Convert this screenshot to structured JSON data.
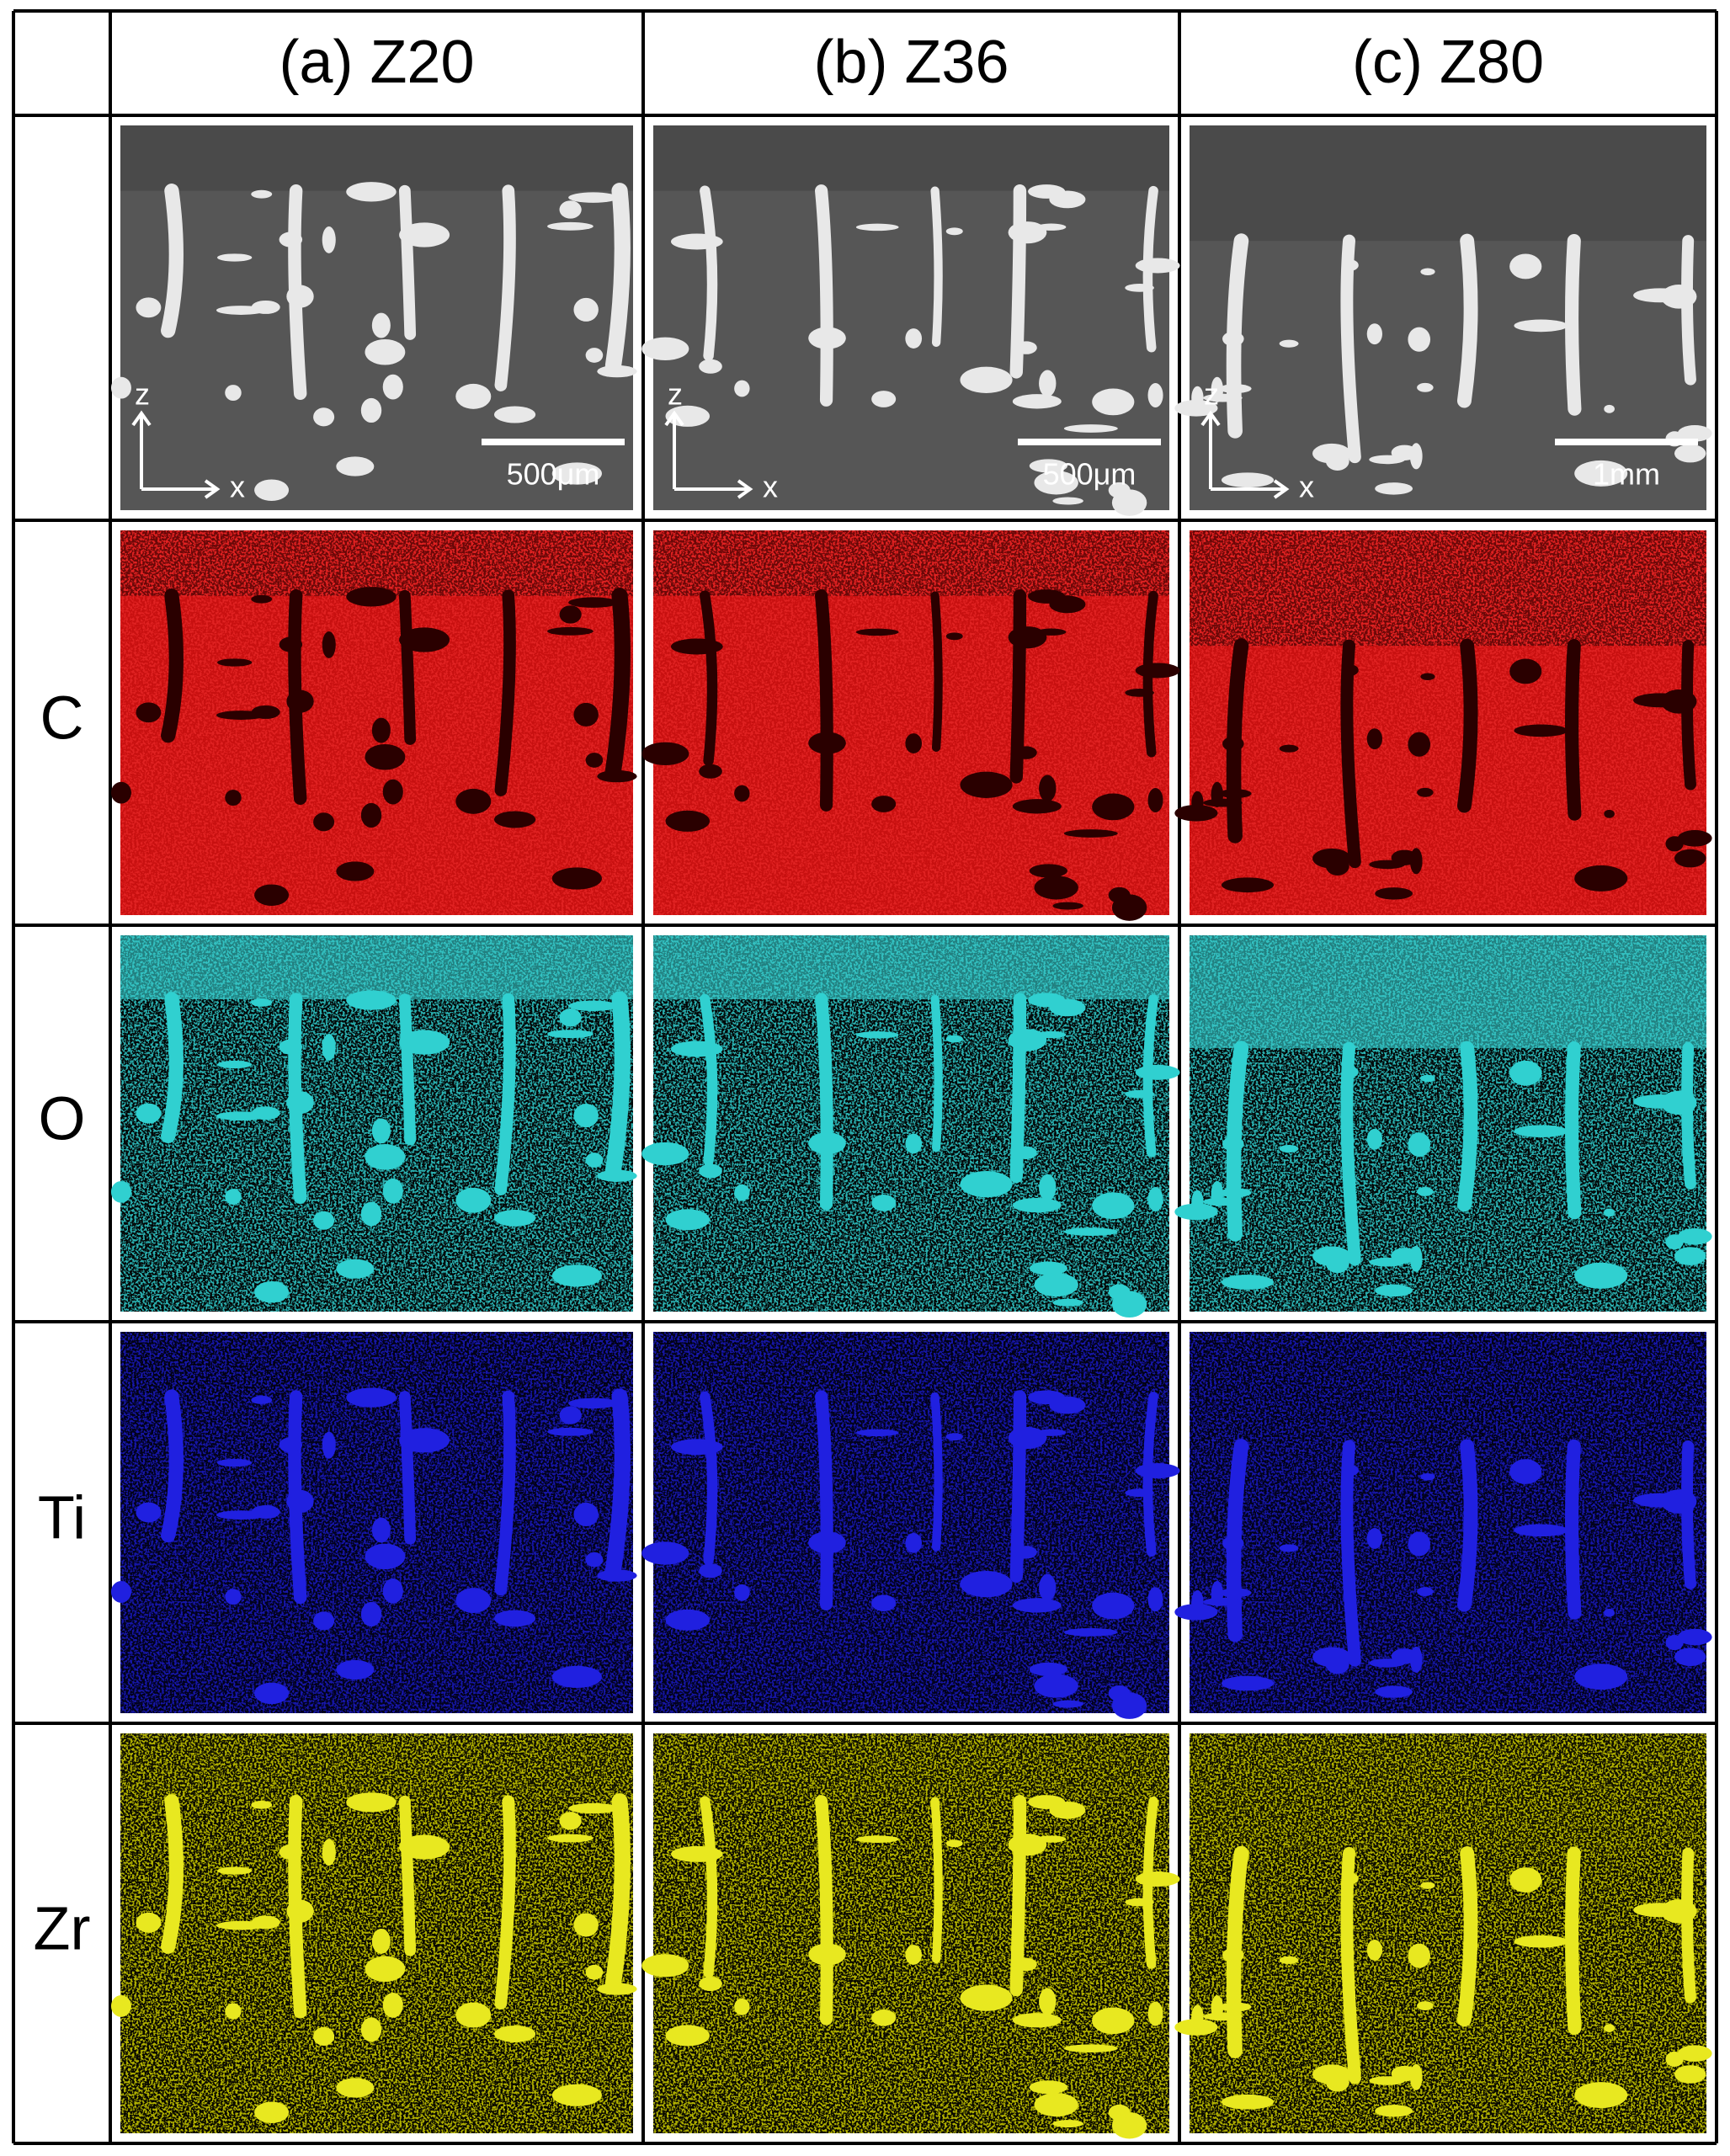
{
  "header": {
    "columns": [
      "(a) Z20",
      "(b) Z36",
      "(c) Z80"
    ]
  },
  "rows": [
    {
      "label": "C"
    },
    {
      "label": "O"
    },
    {
      "label": "Ti"
    },
    {
      "label": "Zr"
    }
  ],
  "sem": [
    {
      "axis_z": "z",
      "axis_x": "x",
      "scale_bar": "500μm"
    },
    {
      "axis_z": "z",
      "axis_x": "x",
      "scale_bar": "500μm"
    },
    {
      "axis_z": "z",
      "axis_x": "x",
      "scale_bar": "1mm"
    }
  ]
}
